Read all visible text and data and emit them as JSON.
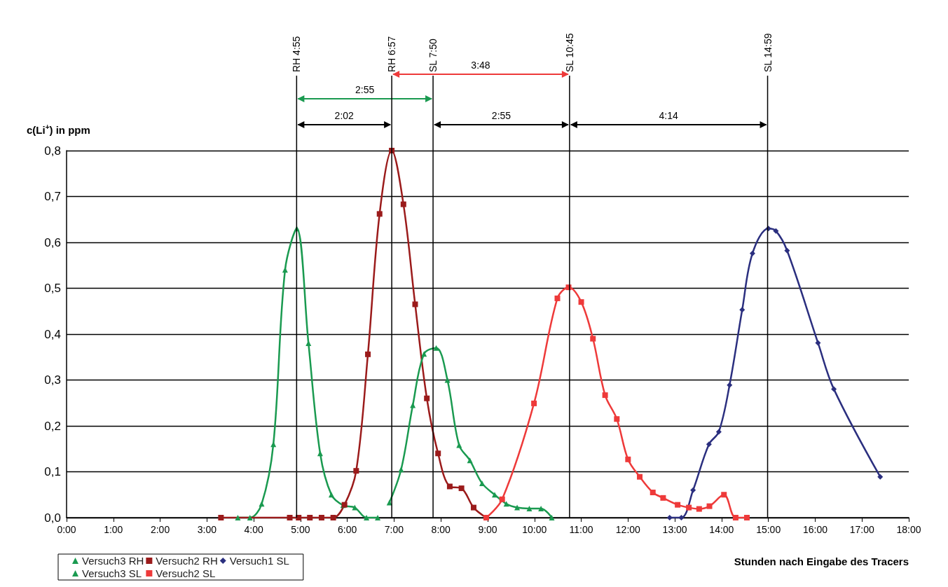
{
  "chart_data": {
    "type": "line",
    "xlabel": "Stunden nach Eingabe des Tracers",
    "ylabel": "c(Li$^{+}$) in ppm",
    "xlim": [
      0,
      18
    ],
    "ylim": [
      0,
      0.8
    ],
    "xticks": [
      {
        "value": 0,
        "label": "0:00"
      },
      {
        "value": 1,
        "label": "1:00"
      },
      {
        "value": 2,
        "label": "2:00"
      },
      {
        "value": 3,
        "label": "3:00"
      },
      {
        "value": 4,
        "label": "4:00"
      },
      {
        "value": 5,
        "label": "5:00"
      },
      {
        "value": 6,
        "label": "6:00"
      },
      {
        "value": 7,
        "label": "7:00"
      },
      {
        "value": 8,
        "label": "8:00"
      },
      {
        "value": 9,
        "label": "9:00"
      },
      {
        "value": 10,
        "label": "10:00"
      },
      {
        "value": 11,
        "label": "11:00"
      },
      {
        "value": 12,
        "label": "12:00"
      },
      {
        "value": 13,
        "label": "13:00"
      },
      {
        "value": 14,
        "label": "14:00"
      },
      {
        "value": 15,
        "label": "15:00"
      },
      {
        "value": 16,
        "label": "16:00"
      },
      {
        "value": 17,
        "label": "17:00"
      },
      {
        "value": 18,
        "label": "18:00"
      }
    ],
    "yticks": [
      {
        "value": 0,
        "label": "0,0"
      },
      {
        "value": 0.1,
        "label": "0,1"
      },
      {
        "value": 0.2,
        "label": "0,2"
      },
      {
        "value": 0.3,
        "label": "0,3"
      },
      {
        "value": 0.4,
        "label": "0,4"
      },
      {
        "value": 0.5,
        "label": "0,5"
      },
      {
        "value": 0.6,
        "label": "0,6"
      },
      {
        "value": 0.7,
        "label": "0,7"
      },
      {
        "value": 0.8,
        "label": "0,8"
      }
    ],
    "grid": "y",
    "legend": "bottom left",
    "line_style": "solid",
    "series": [
      {
        "name": "Versuch3 RH",
        "color": "#1a9a50",
        "marker": "triangle",
        "x": [
          3.66,
          3.92,
          4.17,
          4.42,
          4.67,
          4.92,
          5.17,
          5.42,
          5.66,
          5.91,
          6.16,
          6.41,
          6.65
        ],
        "values": [
          0,
          0,
          0.03,
          0.16,
          0.54,
          0.63,
          0.38,
          0.14,
          0.05,
          0.027,
          0.022,
          0,
          0
        ]
      },
      {
        "name": "Versuch2 RH",
        "color": "#9b1b1b",
        "marker": "square",
        "x": [
          3.3,
          4.77,
          4.96,
          5.2,
          5.45,
          5.7,
          5.94,
          6.19,
          6.44,
          6.69,
          6.95,
          7.2,
          7.45,
          7.7,
          7.94,
          8.19,
          8.44,
          8.7,
          8.97
        ],
        "values": [
          0,
          0,
          0,
          0,
          0,
          0,
          0.028,
          0.102,
          0.356,
          0.662,
          0.8,
          0.683,
          0.465,
          0.26,
          0.14,
          0.068,
          0.064,
          0.022,
          0
        ]
      },
      {
        "name": "Versuch1 SL",
        "color": "#2b2f7f",
        "marker": "diamond",
        "x": [
          12.89,
          13.14,
          13.39,
          13.73,
          13.94,
          14.17,
          14.44,
          14.66,
          15.0,
          15.16,
          15.4,
          16.06,
          16.4,
          17.39
        ],
        "values": [
          0,
          0,
          0.06,
          0.16,
          0.187,
          0.289,
          0.453,
          0.576,
          0.63,
          0.625,
          0.582,
          0.381,
          0.28,
          0.089
        ]
      },
      {
        "name": "Versuch3 SL",
        "color": "#1a9a50",
        "marker": "triangle",
        "x": [
          6.9,
          7.15,
          7.4,
          7.64,
          7.9,
          8.14,
          8.39,
          8.62,
          8.88,
          9.15,
          9.4,
          9.63,
          9.89,
          10.14,
          10.37
        ],
        "values": [
          0.033,
          0.105,
          0.245,
          0.357,
          0.37,
          0.3,
          0.158,
          0.125,
          0.075,
          0.05,
          0.03,
          0.022,
          0.02,
          0.02,
          0
        ]
      },
      {
        "name": "Versuch2 SL",
        "color": "#ee3a3a",
        "marker": "square",
        "x": [
          8.97,
          9.31,
          9.99,
          10.49,
          10.73,
          11.0,
          11.25,
          11.51,
          11.76,
          12.0,
          12.25,
          12.53,
          12.75,
          13.06,
          13.3,
          13.52,
          13.74,
          14.05,
          14.3,
          14.54
        ],
        "values": [
          0,
          0.04,
          0.249,
          0.478,
          0.502,
          0.47,
          0.39,
          0.267,
          0.215,
          0.127,
          0.089,
          0.055,
          0.043,
          0.028,
          0.022,
          0.019,
          0.025,
          0.05,
          0,
          0
        ]
      }
    ],
    "ref_lines": [
      {
        "axis": "x",
        "value": 4.917
      },
      {
        "axis": "x",
        "value": 6.95
      },
      {
        "axis": "x",
        "value": 7.833
      },
      {
        "axis": "x",
        "value": 10.75
      },
      {
        "axis": "x",
        "value": 14.983
      }
    ],
    "annotations": [
      "RH 4:55",
      "RH 6:57",
      "SL 7:50",
      "SL 10:45",
      "SL 14:59",
      "2:02",
      "2:55",
      "3:48",
      "2:55",
      "4:14"
    ]
  }
}
